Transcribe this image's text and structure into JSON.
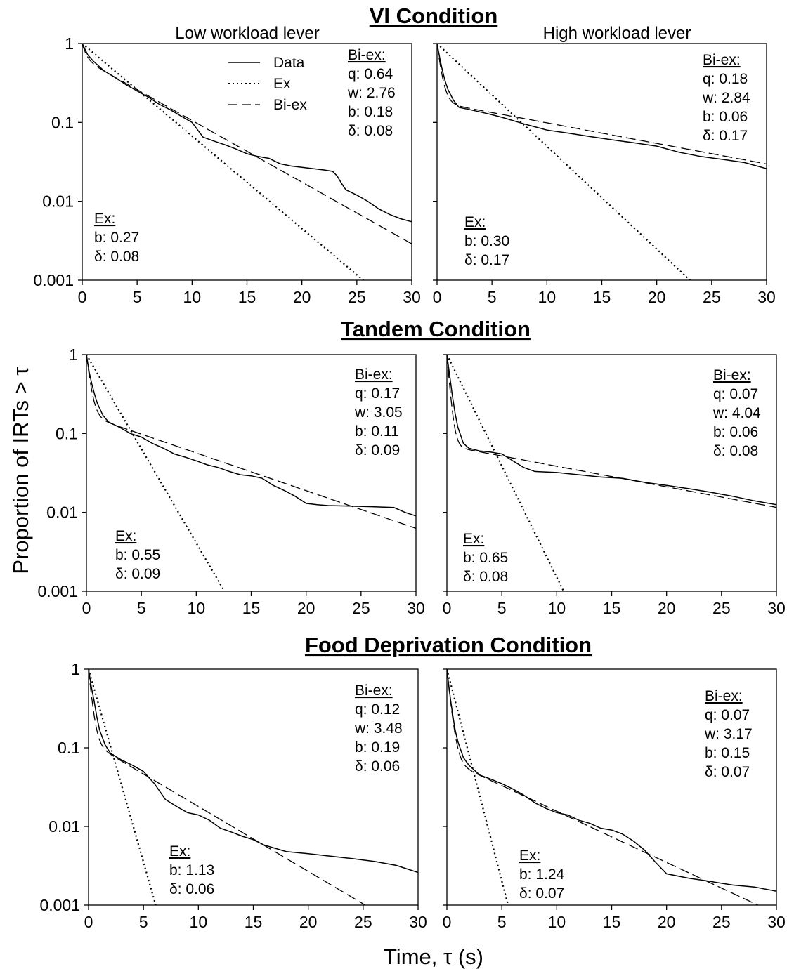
{
  "figure": {
    "y_axis_label": "Proportion of IRTs > τ",
    "x_axis_label": "Time, τ (s)",
    "column_titles": [
      "Low workload lever",
      "High workload lever"
    ],
    "legend": {
      "data": "Data",
      "ex": "Ex",
      "biex": "Bi-ex"
    }
  },
  "chart_data": [
    {
      "type": "line",
      "condition": "VI Condition",
      "panel": "Low workload lever",
      "x_ticks": [
        "0",
        "5",
        "10",
        "15",
        "20",
        "25",
        "30"
      ],
      "y_ticks": [
        "1",
        "0.1",
        "0.01",
        "0.001"
      ],
      "xlim": [
        0,
        30
      ],
      "ylim": [
        0.001,
        1
      ],
      "y_scale": "log",
      "biex": {
        "head": "Bi-ex:",
        "lines": [
          "q: 0.64",
          "w: 2.76",
          "b: 0.18",
          "δ: 0.08"
        ]
      },
      "ex": {
        "head": "Ex:",
        "lines": [
          "b: 0.27",
          "δ: 0.08"
        ]
      },
      "params": {
        "biex_q": 0.64,
        "biex_w": 2.76,
        "biex_b": 0.18,
        "ex_b": 0.27
      },
      "data_series": {
        "x": [
          0,
          0.5,
          1,
          1.5,
          2,
          3,
          4,
          5,
          6,
          7,
          8,
          9,
          10,
          11,
          12,
          13,
          14,
          15,
          16,
          17,
          18,
          19,
          20,
          21,
          22,
          22.8,
          23.2,
          23.6,
          24,
          25,
          26,
          27,
          28,
          29,
          30
        ],
        "y": [
          1,
          0.72,
          0.6,
          0.52,
          0.45,
          0.37,
          0.3,
          0.25,
          0.21,
          0.17,
          0.145,
          0.12,
          0.1,
          0.065,
          0.058,
          0.052,
          0.046,
          0.04,
          0.037,
          0.035,
          0.03,
          0.028,
          0.027,
          0.026,
          0.025,
          0.024,
          0.021,
          0.017,
          0.014,
          0.012,
          0.01,
          0.008,
          0.0068,
          0.006,
          0.0055
        ]
      }
    },
    {
      "type": "line",
      "condition": "VI Condition",
      "panel": "High workload lever",
      "x_ticks": [
        "0",
        "5",
        "10",
        "15",
        "20",
        "25",
        "30"
      ],
      "y_ticks": [],
      "xlim": [
        0,
        30
      ],
      "ylim": [
        0.001,
        1
      ],
      "y_scale": "log",
      "biex": {
        "head": "Bi-ex:",
        "lines": [
          "q: 0.18",
          "w: 2.84",
          "b: 0.06",
          "δ: 0.17"
        ]
      },
      "ex": {
        "head": "Ex:",
        "lines": [
          "b: 0.30",
          "δ: 0.17"
        ]
      },
      "params": {
        "biex_q": 0.18,
        "biex_w": 2.84,
        "biex_b": 0.06,
        "ex_b": 0.3
      },
      "data_series": {
        "x": [
          0,
          0.25,
          0.5,
          0.75,
          1,
          1.5,
          2,
          3,
          4,
          5,
          6,
          8,
          10,
          12,
          14,
          16,
          18,
          20,
          22,
          24,
          26,
          28,
          30
        ],
        "y": [
          1,
          0.65,
          0.45,
          0.33,
          0.26,
          0.19,
          0.155,
          0.145,
          0.135,
          0.125,
          0.115,
          0.095,
          0.08,
          0.073,
          0.066,
          0.06,
          0.055,
          0.05,
          0.042,
          0.037,
          0.034,
          0.031,
          0.026
        ]
      }
    },
    {
      "type": "line",
      "condition": "Tandem Condition",
      "panel": "Low workload lever",
      "x_ticks": [
        "0",
        "5",
        "10",
        "15",
        "20",
        "25",
        "30"
      ],
      "y_ticks": [
        "1",
        "0.1",
        "0.01",
        "0.001"
      ],
      "xlim": [
        0,
        30
      ],
      "ylim": [
        0.001,
        1
      ],
      "y_scale": "log",
      "biex": {
        "head": "Bi-ex:",
        "lines": [
          "q: 0.17",
          "w: 3.05",
          "b: 0.11",
          "δ: 0.09"
        ]
      },
      "ex": {
        "head": "Ex:",
        "lines": [
          "b: 0.55",
          "δ: 0.09"
        ]
      },
      "params": {
        "biex_q": 0.17,
        "biex_w": 3.05,
        "biex_b": 0.11,
        "ex_b": 0.55
      },
      "data_series": {
        "x": [
          0,
          0.25,
          0.5,
          0.75,
          1,
          1.5,
          2,
          3,
          4,
          5,
          6,
          7,
          8,
          9,
          10,
          11,
          12,
          13,
          14,
          15,
          16,
          17,
          18,
          19,
          20,
          21,
          22,
          24,
          26,
          28,
          29,
          30
        ],
        "y": [
          1,
          0.6,
          0.42,
          0.31,
          0.24,
          0.17,
          0.14,
          0.12,
          0.1,
          0.09,
          0.075,
          0.065,
          0.055,
          0.05,
          0.045,
          0.04,
          0.037,
          0.033,
          0.03,
          0.029,
          0.027,
          0.022,
          0.019,
          0.016,
          0.013,
          0.0125,
          0.0122,
          0.012,
          0.0118,
          0.0115,
          0.01,
          0.009
        ]
      }
    },
    {
      "type": "line",
      "condition": "Tandem Condition",
      "panel": "High workload lever",
      "x_ticks": [
        "0",
        "5",
        "10",
        "15",
        "20",
        "25",
        "30"
      ],
      "y_ticks": [],
      "xlim": [
        0,
        30
      ],
      "ylim": [
        0.001,
        1
      ],
      "y_scale": "log",
      "biex": {
        "head": "Bi-ex:",
        "lines": [
          "q: 0.07",
          "w: 4.04",
          "b: 0.06",
          "δ: 0.08"
        ]
      },
      "ex": {
        "head": "Ex:",
        "lines": [
          "b: 0.65",
          "δ: 0.08"
        ]
      },
      "params": {
        "biex_q": 0.07,
        "biex_w": 4.04,
        "biex_b": 0.06,
        "ex_b": 0.65
      },
      "data_series": {
        "x": [
          0,
          0.25,
          0.5,
          0.75,
          1,
          1.5,
          2,
          3,
          4,
          5,
          6,
          7,
          8,
          10,
          12,
          14,
          16,
          18,
          20,
          22,
          24,
          26,
          28,
          30
        ],
        "y": [
          1,
          0.55,
          0.3,
          0.18,
          0.12,
          0.075,
          0.065,
          0.06,
          0.058,
          0.055,
          0.045,
          0.037,
          0.033,
          0.032,
          0.03,
          0.028,
          0.027,
          0.024,
          0.022,
          0.02,
          0.018,
          0.016,
          0.014,
          0.0125
        ]
      }
    },
    {
      "type": "line",
      "condition": "Food Deprivation Condition",
      "panel": "Low workload lever",
      "x_ticks": [
        "0",
        "5",
        "10",
        "15",
        "20",
        "25",
        "30"
      ],
      "y_ticks": [
        "1",
        "0.1",
        "0.01",
        "0.001"
      ],
      "xlim": [
        0,
        30
      ],
      "ylim": [
        0.001,
        1
      ],
      "y_scale": "log",
      "biex": {
        "head": "Bi-ex:",
        "lines": [
          "q: 0.12",
          "w: 3.48",
          "b: 0.19",
          "δ: 0.06"
        ]
      },
      "ex": {
        "head": "Ex:",
        "lines": [
          "b: 1.13",
          "δ: 0.06"
        ]
      },
      "params": {
        "biex_q": 0.12,
        "biex_w": 3.48,
        "biex_b": 0.19,
        "ex_b": 1.13
      },
      "data_series": {
        "x": [
          0,
          0.25,
          0.5,
          0.75,
          1,
          1.5,
          2,
          3,
          4,
          5,
          6,
          7,
          8,
          9,
          10,
          11,
          12,
          13,
          14,
          15,
          16,
          18,
          20,
          22,
          24,
          26,
          28,
          30
        ],
        "y": [
          1,
          0.6,
          0.4,
          0.25,
          0.17,
          0.11,
          0.085,
          0.07,
          0.06,
          0.05,
          0.035,
          0.022,
          0.018,
          0.015,
          0.014,
          0.012,
          0.0095,
          0.0085,
          0.0075,
          0.0068,
          0.0058,
          0.0048,
          0.0045,
          0.0042,
          0.0039,
          0.0036,
          0.0032,
          0.0026
        ]
      }
    },
    {
      "type": "line",
      "condition": "Food Deprivation Condition",
      "panel": "High workload lever",
      "x_ticks": [
        "0",
        "5",
        "10",
        "15",
        "20",
        "25",
        "30"
      ],
      "y_ticks": [],
      "xlim": [
        0,
        30
      ],
      "ylim": [
        0.001,
        1
      ],
      "y_scale": "log",
      "biex": {
        "head": "Bi-ex:",
        "lines": [
          "q: 0.07",
          "w: 3.17",
          "b: 0.15",
          "δ: 0.07"
        ]
      },
      "ex": {
        "head": "Ex:",
        "lines": [
          "b: 1.24",
          "δ: 0.07"
        ]
      },
      "params": {
        "biex_q": 0.07,
        "biex_w": 3.17,
        "biex_b": 0.15,
        "ex_b": 1.24
      },
      "data_series": {
        "x": [
          0,
          0.25,
          0.5,
          0.75,
          1,
          1.5,
          2,
          3,
          4,
          5,
          6,
          7,
          8,
          9,
          10,
          11,
          12,
          13,
          14,
          15,
          16,
          17,
          18,
          19,
          20,
          22,
          24,
          26,
          28,
          30
        ],
        "y": [
          1,
          0.5,
          0.28,
          0.17,
          0.12,
          0.075,
          0.06,
          0.045,
          0.04,
          0.035,
          0.03,
          0.025,
          0.02,
          0.017,
          0.015,
          0.014,
          0.012,
          0.011,
          0.0095,
          0.009,
          0.008,
          0.0065,
          0.005,
          0.0035,
          0.0025,
          0.0022,
          0.002,
          0.0018,
          0.0017,
          0.0015
        ]
      }
    }
  ]
}
